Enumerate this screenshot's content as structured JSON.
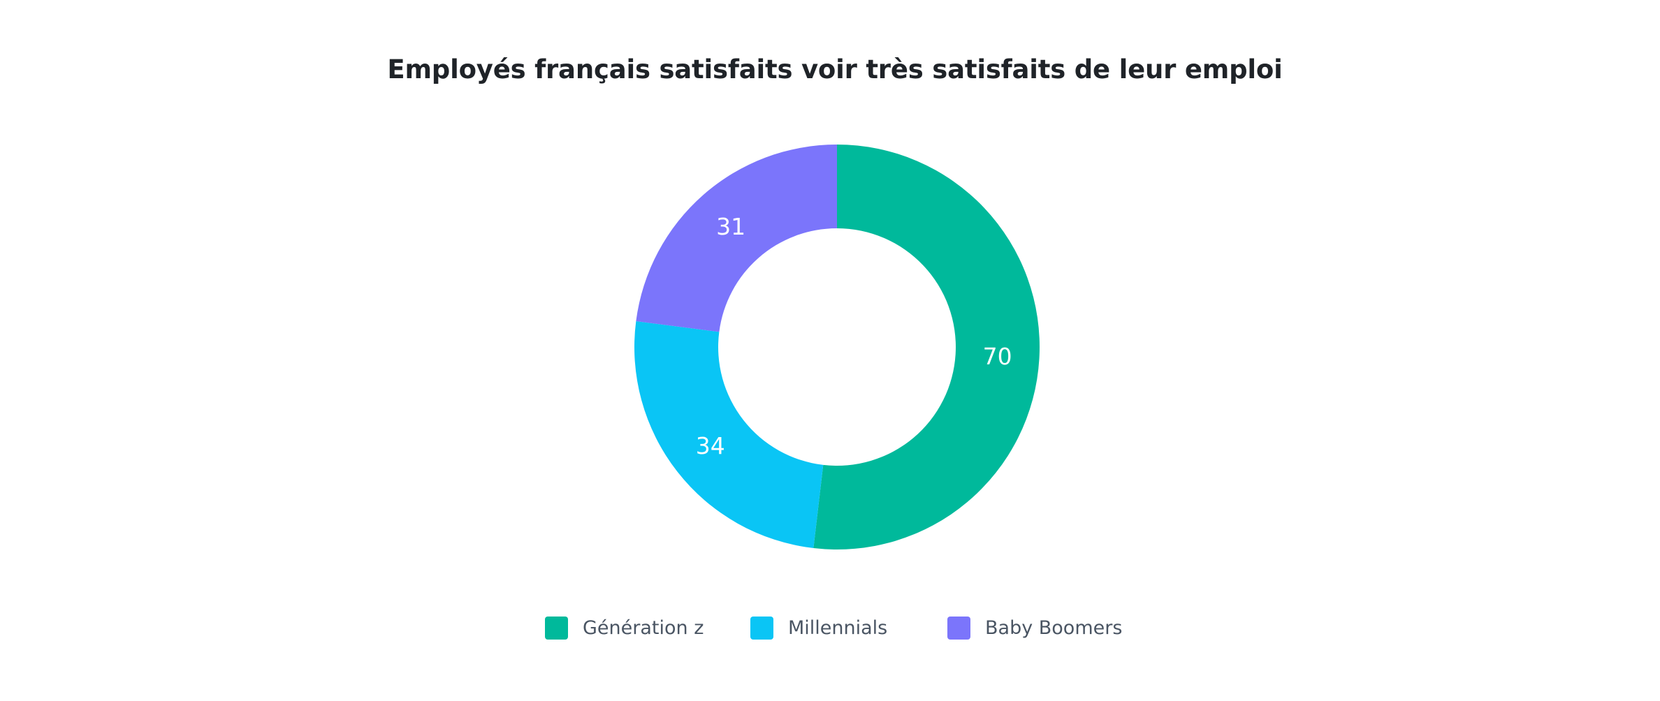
{
  "chart_data": {
    "type": "pie",
    "title": "Employés français satisfaits voir très satisfaits de leur emploi",
    "categories": [
      "Génération z",
      "Millennials",
      "Baby Boomers"
    ],
    "values": [
      70,
      34,
      31
    ],
    "colors": [
      "#00b99b",
      "#0ac5f5",
      "#7b75fb"
    ],
    "donut": true,
    "start_angle": "top (12 o'clock), clockwise",
    "data_labels": [
      "70",
      "34",
      "31"
    ],
    "legend_position": "bottom"
  },
  "legend": {
    "items": [
      {
        "label": "Génération z",
        "color": "#00b99b"
      },
      {
        "label": "Millennials",
        "color": "#0ac5f5"
      },
      {
        "label": "Baby Boomers",
        "color": "#7b75fb"
      }
    ]
  }
}
